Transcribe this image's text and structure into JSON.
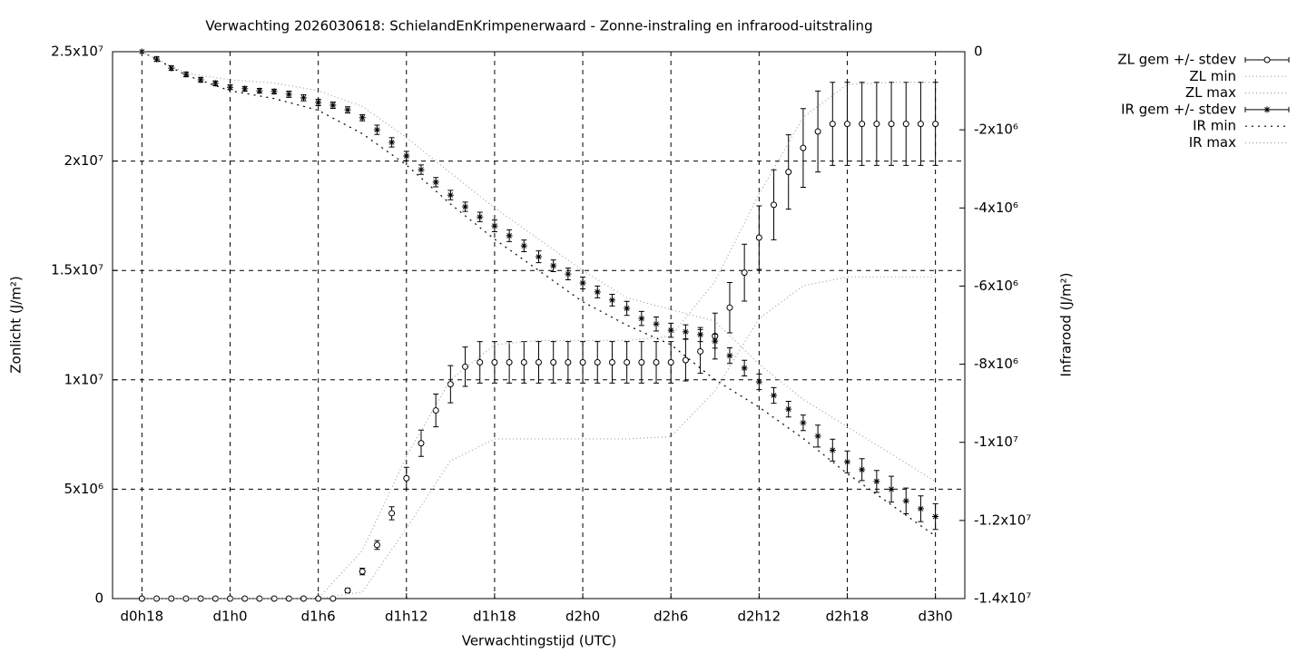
{
  "chart_data": {
    "type": "errorbar",
    "title": "Verwachting 2026030618: SchielandEnKrimpenerwaard - Zonne-instraling en infrarood-uitstraling",
    "xlabel": "Verwachtingstijd (UTC)",
    "ylabel": "Zonlicht (J/m²)",
    "y2label": "Infrarood (J/m²)",
    "grid": true,
    "legend": "outside-top-right",
    "xlim": [
      16,
      74
    ],
    "xticks": [
      {
        "value": 18,
        "label": "d0h18"
      },
      {
        "value": 24,
        "label": "d1h0"
      },
      {
        "value": 30,
        "label": "d1h6"
      },
      {
        "value": 36,
        "label": "d1h12"
      },
      {
        "value": 42,
        "label": "d1h18"
      },
      {
        "value": 48,
        "label": "d2h0"
      },
      {
        "value": 54,
        "label": "d2h6"
      },
      {
        "value": 60,
        "label": "d2h12"
      },
      {
        "value": 66,
        "label": "d2h18"
      },
      {
        "value": 72,
        "label": "d3h0"
      }
    ],
    "ylim": [
      0,
      25000000
    ],
    "yticks": [
      0,
      {
        "value": 5000000,
        "label": "5x10⁶"
      },
      {
        "value": 10000000,
        "label": "1x10⁷"
      },
      {
        "value": 15000000,
        "label": "1.5x10⁷"
      },
      {
        "value": 20000000,
        "label": "2x10⁷"
      },
      {
        "value": 25000000,
        "label": "2.5x10⁷"
      }
    ],
    "y2lim": [
      -14000000,
      0
    ],
    "y2ticks": [
      0,
      {
        "value": -2000000,
        "label": "-2x10⁶"
      },
      {
        "value": -4000000,
        "label": "-4x10⁶"
      },
      {
        "value": -6000000,
        "label": "-6x10⁶"
      },
      {
        "value": -8000000,
        "label": "-8x10⁶"
      },
      {
        "value": -10000000,
        "label": "-1x10⁷"
      },
      {
        "value": -12000000,
        "label": "-1.2x10⁷"
      },
      {
        "value": -14000000,
        "label": "-1.4x10⁷"
      }
    ],
    "x": [
      18,
      19,
      20,
      21,
      22,
      23,
      24,
      25,
      26,
      27,
      28,
      29,
      30,
      31,
      32,
      33,
      34,
      35,
      36,
      37,
      38,
      39,
      40,
      41,
      42,
      43,
      44,
      45,
      46,
      47,
      48,
      49,
      50,
      51,
      52,
      53,
      54,
      55,
      56,
      57,
      58,
      59,
      60,
      61,
      62,
      63,
      64,
      65,
      66,
      67,
      68,
      69,
      70,
      71,
      72
    ],
    "series": [
      {
        "name": "ZL gem +/- stdev",
        "color": "#000000",
        "marker": "circle",
        "values": [
          0,
          0,
          0,
          0,
          0,
          0,
          0,
          0,
          0,
          0,
          0,
          0,
          0,
          0,
          370000,
          1240000,
          2450000,
          3900000,
          5500000,
          7100000,
          8600000,
          9800000,
          10600000,
          10800000,
          10800000,
          10800000,
          10800000,
          10800000,
          10800000,
          10800000,
          10800000,
          10800000,
          10800000,
          10800000,
          10800000,
          10800000,
          10800000,
          10900000,
          11300000,
          12000000,
          13300000,
          14900000,
          16500000,
          18000000,
          19500000,
          20600000,
          21350000,
          21700000,
          21700000,
          21700000,
          21700000,
          21700000,
          21700000,
          21700000,
          21700000
        ],
        "errors": [
          0,
          0,
          0,
          0,
          0,
          0,
          0,
          0,
          0,
          0,
          0,
          0,
          0,
          0,
          100000,
          150000,
          200000,
          300000,
          500000,
          600000,
          750000,
          850000,
          900000,
          950000,
          950000,
          950000,
          950000,
          950000,
          950000,
          950000,
          950000,
          950000,
          950000,
          950000,
          950000,
          950000,
          950000,
          950000,
          1000000,
          1050000,
          1150000,
          1300000,
          1450000,
          1600000,
          1700000,
          1800000,
          1850000,
          1900000,
          1900000,
          1900000,
          1900000,
          1900000,
          1900000,
          1900000,
          1900000
        ]
      },
      {
        "name": "ZL min",
        "color": "#a0a0a0",
        "dash": "1,3",
        "x": [
          18,
          21,
          24,
          27,
          30,
          33,
          36,
          39,
          42,
          45,
          48,
          51,
          54,
          57,
          60,
          63,
          66,
          69,
          72
        ],
        "values": [
          0,
          0,
          0,
          0,
          0,
          300000,
          3200000,
          6300000,
          7300000,
          7300000,
          7300000,
          7300000,
          7400000,
          9500000,
          12800000,
          14300000,
          14700000,
          14700000,
          14700000
        ]
      },
      {
        "name": "ZL max",
        "color": "#a0a0a0",
        "dash": "1,3",
        "x": [
          18,
          21,
          24,
          27,
          30,
          33,
          36,
          39,
          42,
          45,
          48,
          51,
          54,
          57,
          60,
          63,
          66,
          69,
          72
        ],
        "values": [
          0,
          0,
          0,
          0,
          0,
          2200000,
          6500000,
          10000000,
          11600000,
          11800000,
          11800000,
          11800000,
          12000000,
          14500000,
          18500000,
          22000000,
          23500000,
          23600000,
          23600000
        ]
      },
      {
        "name": "IR gem +/- stdev",
        "color": "#000000",
        "marker": "star",
        "axis": "y2",
        "values": [
          0,
          -190000,
          -420000,
          -580000,
          -720000,
          -810000,
          -910000,
          -950000,
          -1000000,
          -1020000,
          -1090000,
          -1180000,
          -1300000,
          -1370000,
          -1490000,
          -1690000,
          -2000000,
          -2320000,
          -2670000,
          -3020000,
          -3340000,
          -3670000,
          -3970000,
          -4230000,
          -4460000,
          -4710000,
          -4970000,
          -5250000,
          -5480000,
          -5690000,
          -5920000,
          -6150000,
          -6360000,
          -6570000,
          -6830000,
          -6970000,
          -7130000,
          -7170000,
          -7240000,
          -7410000,
          -7780000,
          -8100000,
          -8450000,
          -8800000,
          -9150000,
          -9500000,
          -9840000,
          -10200000,
          -10500000,
          -10700000,
          -11000000,
          -11200000,
          -11500000,
          -11700000,
          -11900000
        ],
        "errors": [
          0,
          60000,
          60000,
          60000,
          60000,
          60000,
          60000,
          60000,
          60000,
          60000,
          80000,
          80000,
          80000,
          80000,
          80000,
          80000,
          120000,
          120000,
          120000,
          120000,
          120000,
          120000,
          120000,
          120000,
          150000,
          150000,
          150000,
          150000,
          150000,
          150000,
          150000,
          150000,
          150000,
          180000,
          180000,
          180000,
          180000,
          180000,
          180000,
          180000,
          200000,
          200000,
          200000,
          200000,
          200000,
          200000,
          280000,
          280000,
          280000,
          280000,
          280000,
          330000,
          330000,
          330000,
          330000
        ]
      },
      {
        "name": "IR min",
        "color": "#000000",
        "dash": "2,5",
        "axis": "y2",
        "x": [
          18,
          21,
          24,
          27,
          30,
          33,
          36,
          39,
          42,
          45,
          48,
          51,
          54,
          57,
          60,
          63,
          66,
          69,
          72
        ],
        "values": [
          0,
          -600000,
          -1000000,
          -1200000,
          -1500000,
          -2100000,
          -2900000,
          -3900000,
          -4800000,
          -5600000,
          -6400000,
          -7000000,
          -7500000,
          -8400000,
          -9100000,
          -9900000,
          -10800000,
          -11600000,
          -12400000
        ]
      },
      {
        "name": "IR max",
        "color": "#a0a0a0",
        "dash": "1,3",
        "axis": "y2",
        "x": [
          18,
          21,
          24,
          27,
          30,
          33,
          36,
          39,
          42,
          45,
          48,
          51,
          54,
          57,
          60,
          63,
          66,
          69,
          72
        ],
        "values": [
          0,
          -550000,
          -720000,
          -800000,
          -1000000,
          -1400000,
          -2200000,
          -3100000,
          -4000000,
          -4800000,
          -5600000,
          -6300000,
          -6600000,
          -6900000,
          -8000000,
          -8900000,
          -9600000,
          -10300000,
          -11000000
        ]
      }
    ]
  }
}
